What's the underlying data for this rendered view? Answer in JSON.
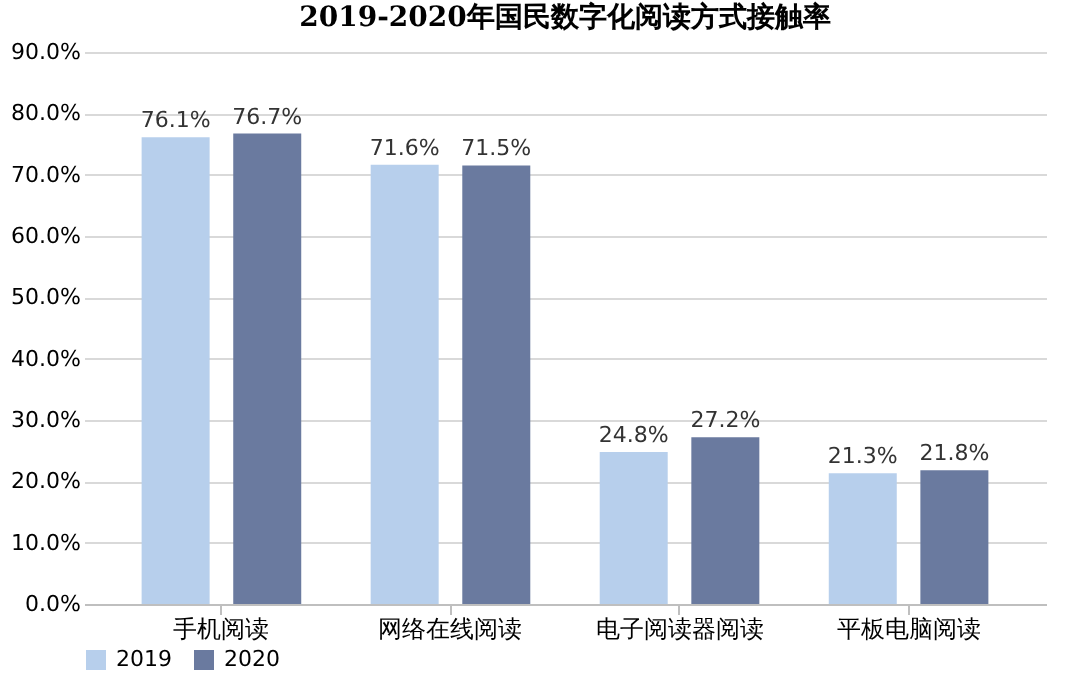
{
  "chart_data": {
    "type": "bar",
    "title": "2019-2020年国民数字化阅读方式接触率",
    "categories": [
      "手机阅读",
      "网络在线阅读",
      "电子阅读器阅读",
      "平板电脑阅读"
    ],
    "series": [
      {
        "name": "2019",
        "color": "#b7cfec",
        "values": [
          76.1,
          71.6,
          24.8,
          21.3
        ],
        "value_labels": [
          "76.1%",
          "71.6%",
          "24.8%",
          "21.3%"
        ]
      },
      {
        "name": "2020",
        "color": "#6a7a9f",
        "values": [
          76.7,
          71.5,
          27.2,
          21.8
        ],
        "value_labels": [
          "76.7%",
          "71.5%",
          "27.2%",
          "21.8%"
        ]
      }
    ],
    "ylim": [
      0,
      90
    ],
    "yticks": [
      {
        "value": 0,
        "label": "0.0%"
      },
      {
        "value": 10,
        "label": "10.0%"
      },
      {
        "value": 20,
        "label": "20.0%"
      },
      {
        "value": 30,
        "label": "30.0%"
      },
      {
        "value": 40,
        "label": "40.0%"
      },
      {
        "value": 50,
        "label": "50.0%"
      },
      {
        "value": 60,
        "label": "60.0%"
      },
      {
        "value": 70,
        "label": "70.0%"
      },
      {
        "value": 80,
        "label": "80.0%"
      },
      {
        "value": 90,
        "label": "90.0%"
      }
    ],
    "grid": "y",
    "legend": "bottom"
  }
}
